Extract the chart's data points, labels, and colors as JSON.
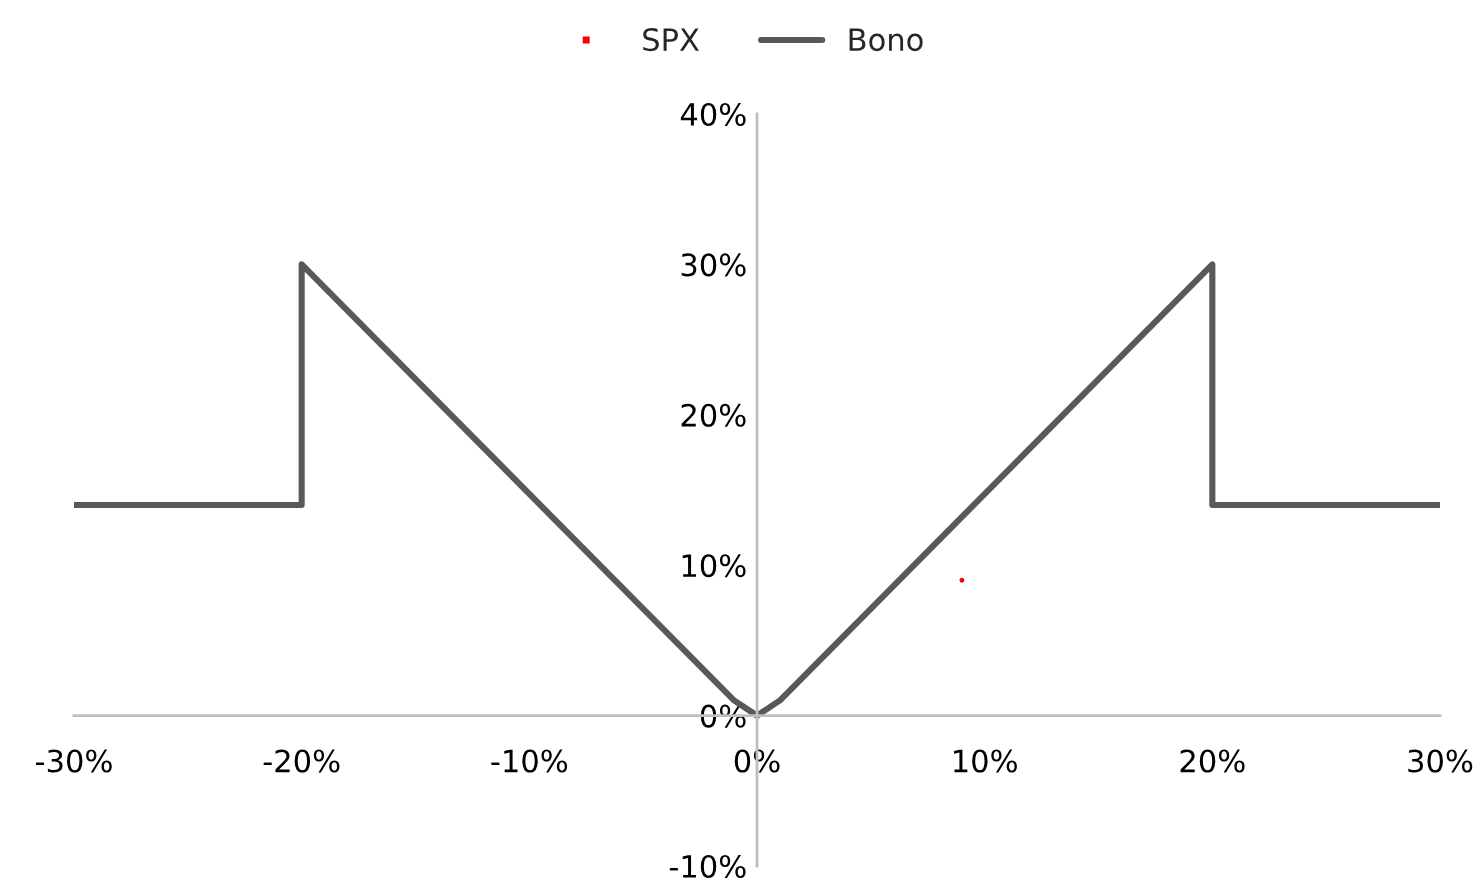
{
  "chart_data": {
    "type": "line",
    "x": [
      -30,
      -20,
      -20,
      -1,
      0,
      1,
      20,
      20,
      30
    ],
    "series": [
      {
        "name": "SPX",
        "type": "scatter",
        "color": "#ff0000",
        "x": [
          9
        ],
        "values": [
          9
        ]
      },
      {
        "name": "Bono",
        "color": "#595959",
        "values": [
          14,
          14,
          30,
          1,
          0,
          1,
          30,
          14,
          14
        ]
      }
    ],
    "xlim": [
      -30,
      30
    ],
    "xticks": [
      {
        "value": -30,
        "label": "-30%"
      },
      {
        "value": -20,
        "label": "-20%"
      },
      {
        "value": -10,
        "label": "-10%"
      },
      {
        "value": 0,
        "label": "0%"
      },
      {
        "value": 10,
        "label": "10%"
      },
      {
        "value": 20,
        "label": "20%"
      },
      {
        "value": 30,
        "label": "30%"
      }
    ],
    "ylim": [
      -10,
      40
    ],
    "yticks": [
      {
        "value": -10,
        "label": "-10%"
      },
      {
        "value": 0,
        "label": "0%"
      },
      {
        "value": 10,
        "label": "10%"
      },
      {
        "value": 20,
        "label": "20%"
      },
      {
        "value": 30,
        "label": "30%"
      },
      {
        "value": 40,
        "label": "40%"
      }
    ],
    "grid": false,
    "legend": "top",
    "marker": "none",
    "line_style": "solid"
  }
}
